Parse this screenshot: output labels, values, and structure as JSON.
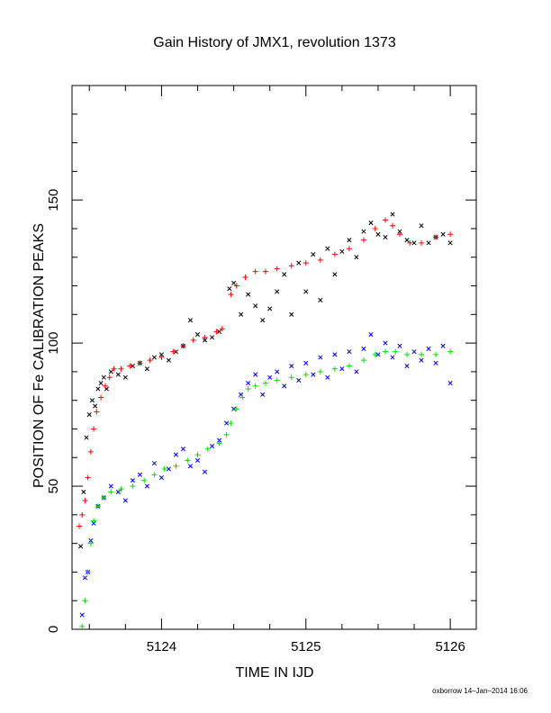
{
  "chart_data": {
    "type": "scatter",
    "title": "Gain History of JMX1, revolution 1373",
    "xlabel": "TIME IN IJD",
    "ylabel": "POSITION OF Fe CALIBRATION PEAKS",
    "xlim": [
      5123.38,
      5126.18
    ],
    "ylim": [
      0,
      190
    ],
    "x_ticks": [
      5124,
      5125,
      5126
    ],
    "y_ticks": [
      0,
      50,
      100,
      150
    ],
    "x_tick_labels": [
      "5124",
      "5125",
      "5126"
    ],
    "y_tick_labels": [
      "0",
      "50",
      "100",
      "150"
    ],
    "grid": false,
    "legend": "none",
    "footer": "oxborrow 14–Jan–2014 16:06",
    "series": [
      {
        "color": "#000000",
        "marker": "x",
        "points": [
          [
            5123.44,
            29
          ],
          [
            5123.46,
            48
          ],
          [
            5123.48,
            67
          ],
          [
            5123.5,
            75
          ],
          [
            5123.52,
            80
          ],
          [
            5123.54,
            78
          ],
          [
            5123.56,
            84
          ],
          [
            5123.58,
            86
          ],
          [
            5123.6,
            88
          ],
          [
            5123.62,
            84
          ],
          [
            5123.65,
            90
          ],
          [
            5123.7,
            89
          ],
          [
            5123.75,
            88
          ],
          [
            5123.8,
            92
          ],
          [
            5123.85,
            93
          ],
          [
            5123.9,
            91
          ],
          [
            5123.95,
            95
          ],
          [
            5124.0,
            96
          ],
          [
            5124.05,
            94
          ],
          [
            5124.1,
            97
          ],
          [
            5124.15,
            99
          ],
          [
            5124.2,
            108
          ],
          [
            5124.25,
            103
          ],
          [
            5124.3,
            101
          ],
          [
            5124.35,
            102
          ],
          [
            5124.4,
            104
          ],
          [
            5124.47,
            119
          ],
          [
            5124.5,
            121
          ],
          [
            5124.55,
            110
          ],
          [
            5124.6,
            117
          ],
          [
            5124.65,
            113
          ],
          [
            5124.7,
            108
          ],
          [
            5124.75,
            112
          ],
          [
            5124.8,
            118
          ],
          [
            5124.85,
            124
          ],
          [
            5124.9,
            110
          ],
          [
            5124.95,
            128
          ],
          [
            5125.0,
            118
          ],
          [
            5125.05,
            131
          ],
          [
            5125.1,
            115
          ],
          [
            5125.15,
            133
          ],
          [
            5125.2,
            124
          ],
          [
            5125.25,
            132
          ],
          [
            5125.3,
            136
          ],
          [
            5125.35,
            130
          ],
          [
            5125.4,
            139
          ],
          [
            5125.45,
            142
          ],
          [
            5125.5,
            138
          ],
          [
            5125.55,
            137
          ],
          [
            5125.6,
            145
          ],
          [
            5125.65,
            139
          ],
          [
            5125.7,
            136
          ],
          [
            5125.75,
            135
          ],
          [
            5125.8,
            141
          ],
          [
            5125.85,
            135
          ],
          [
            5125.9,
            137
          ],
          [
            5125.95,
            138
          ],
          [
            5126.0,
            135
          ]
        ]
      },
      {
        "color": "#0000ff",
        "marker": "x",
        "points": [
          [
            5123.45,
            5
          ],
          [
            5123.47,
            18
          ],
          [
            5123.49,
            20
          ],
          [
            5123.51,
            31
          ],
          [
            5123.53,
            37
          ],
          [
            5123.56,
            43
          ],
          [
            5123.6,
            46
          ],
          [
            5123.65,
            50
          ],
          [
            5123.7,
            48
          ],
          [
            5123.75,
            45
          ],
          [
            5123.8,
            52
          ],
          [
            5123.85,
            54
          ],
          [
            5123.9,
            50
          ],
          [
            5123.95,
            58
          ],
          [
            5124.0,
            53
          ],
          [
            5124.05,
            56
          ],
          [
            5124.1,
            61
          ],
          [
            5124.15,
            63
          ],
          [
            5124.2,
            57
          ],
          [
            5124.25,
            59
          ],
          [
            5124.3,
            55
          ],
          [
            5124.35,
            64
          ],
          [
            5124.4,
            66
          ],
          [
            5124.45,
            72
          ],
          [
            5124.5,
            77
          ],
          [
            5124.55,
            82
          ],
          [
            5124.6,
            86
          ],
          [
            5124.65,
            89
          ],
          [
            5124.7,
            82
          ],
          [
            5124.75,
            88
          ],
          [
            5124.8,
            90
          ],
          [
            5124.85,
            85
          ],
          [
            5124.9,
            92
          ],
          [
            5124.95,
            87
          ],
          [
            5125.0,
            93
          ],
          [
            5125.05,
            89
          ],
          [
            5125.1,
            95
          ],
          [
            5125.15,
            88
          ],
          [
            5125.2,
            96
          ],
          [
            5125.25,
            91
          ],
          [
            5125.3,
            97
          ],
          [
            5125.35,
            90
          ],
          [
            5125.4,
            98
          ],
          [
            5125.45,
            103
          ],
          [
            5125.5,
            96
          ],
          [
            5125.55,
            100
          ],
          [
            5125.6,
            95
          ],
          [
            5125.65,
            99
          ],
          [
            5125.7,
            92
          ],
          [
            5125.75,
            97
          ],
          [
            5125.8,
            94
          ],
          [
            5125.85,
            98
          ],
          [
            5125.9,
            93
          ],
          [
            5125.95,
            99
          ],
          [
            5126.0,
            86
          ]
        ]
      },
      {
        "color": "#ff0000",
        "marker": "+",
        "points": [
          [
            5123.43,
            36
          ],
          [
            5123.45,
            40
          ],
          [
            5123.47,
            45
          ],
          [
            5123.49,
            53
          ],
          [
            5123.51,
            62
          ],
          [
            5123.53,
            70
          ],
          [
            5123.55,
            76
          ],
          [
            5123.58,
            81
          ],
          [
            5123.61,
            85
          ],
          [
            5123.64,
            88
          ],
          [
            5123.67,
            91
          ],
          [
            5123.72,
            91
          ],
          [
            5123.78,
            92
          ],
          [
            5123.85,
            93
          ],
          [
            5123.92,
            94
          ],
          [
            5124.0,
            95
          ],
          [
            5124.08,
            97
          ],
          [
            5124.15,
            99
          ],
          [
            5124.22,
            101
          ],
          [
            5124.3,
            102
          ],
          [
            5124.38,
            104
          ],
          [
            5124.42,
            105
          ],
          [
            5124.48,
            117
          ],
          [
            5124.52,
            120
          ],
          [
            5124.58,
            123
          ],
          [
            5124.65,
            125
          ],
          [
            5124.72,
            125
          ],
          [
            5124.8,
            126
          ],
          [
            5124.9,
            127
          ],
          [
            5125.0,
            128
          ],
          [
            5125.1,
            129
          ],
          [
            5125.2,
            131
          ],
          [
            5125.3,
            133
          ],
          [
            5125.4,
            136
          ],
          [
            5125.48,
            140
          ],
          [
            5125.55,
            143
          ],
          [
            5125.6,
            141
          ],
          [
            5125.65,
            138
          ],
          [
            5125.72,
            135
          ],
          [
            5125.8,
            135
          ],
          [
            5125.9,
            137
          ],
          [
            5126.0,
            138
          ]
        ]
      },
      {
        "color": "#00e000",
        "marker": "+",
        "points": [
          [
            5123.45,
            1
          ],
          [
            5123.47,
            10
          ],
          [
            5123.49,
            20
          ],
          [
            5123.51,
            30
          ],
          [
            5123.53,
            38
          ],
          [
            5123.56,
            43
          ],
          [
            5123.6,
            46
          ],
          [
            5123.65,
            48
          ],
          [
            5123.72,
            49
          ],
          [
            5123.8,
            50
          ],
          [
            5123.88,
            52
          ],
          [
            5123.95,
            54
          ],
          [
            5124.02,
            56
          ],
          [
            5124.1,
            57
          ],
          [
            5124.18,
            59
          ],
          [
            5124.25,
            61
          ],
          [
            5124.32,
            63
          ],
          [
            5124.4,
            65
          ],
          [
            5124.45,
            68
          ],
          [
            5124.48,
            72
          ],
          [
            5124.52,
            77
          ],
          [
            5124.56,
            81
          ],
          [
            5124.6,
            84
          ],
          [
            5124.65,
            85
          ],
          [
            5124.72,
            86
          ],
          [
            5124.8,
            87
          ],
          [
            5124.9,
            88
          ],
          [
            5125.0,
            89
          ],
          [
            5125.1,
            90
          ],
          [
            5125.2,
            91
          ],
          [
            5125.3,
            92
          ],
          [
            5125.4,
            94
          ],
          [
            5125.48,
            96
          ],
          [
            5125.55,
            97
          ],
          [
            5125.62,
            97
          ],
          [
            5125.7,
            96
          ],
          [
            5125.8,
            96
          ],
          [
            5125.9,
            96
          ],
          [
            5126.0,
            97
          ]
        ]
      }
    ]
  }
}
